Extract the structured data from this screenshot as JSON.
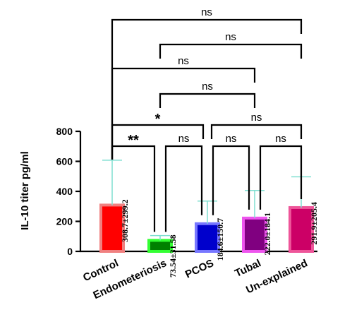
{
  "chart_data": {
    "type": "bar",
    "ylabel": "IL-10 titer pg/ml",
    "ylim": [
      0,
      800
    ],
    "yticks": [
      0,
      200,
      400,
      600,
      800
    ],
    "categories": [
      "Control",
      "Endometeriosis",
      "PCOS",
      "Tubal",
      "Un-explained"
    ],
    "values": [
      308.7,
      73.54,
      184.6,
      222.0,
      291.9
    ],
    "errors": [
      299.2,
      31.58,
      150.7,
      184.1,
      205.4
    ],
    "data_labels": [
      "308.7±299.2",
      "73.54±31.58",
      "184.6±150.7",
      "222.0±184.1",
      "291.9±205.4"
    ],
    "colors": {
      "fill": [
        "#ff0000",
        "#008000",
        "#0000cc",
        "#800080",
        "#cc0066"
      ],
      "edge": [
        "#f08080",
        "#33ff33",
        "#7777ff",
        "#ee55ee",
        "#ee5599"
      ],
      "error": [
        "#7fdfd0",
        "#7fdfd0",
        "#7fdfd0",
        "#7fdfd0",
        "#7fdfd0"
      ]
    },
    "comparisons": [
      {
        "pair": [
          0,
          4
        ],
        "label": "ns"
      },
      {
        "pair": [
          1,
          4
        ],
        "label": "ns"
      },
      {
        "pair": [
          0,
          3
        ],
        "label": "ns"
      },
      {
        "pair": [
          1,
          3
        ],
        "label": "ns"
      },
      {
        "pair": [
          0,
          2
        ],
        "label": "*"
      },
      {
        "pair": [
          2,
          4
        ],
        "label": "ns"
      },
      {
        "pair": [
          0,
          1
        ],
        "label": "**"
      },
      {
        "pair": [
          1,
          2
        ],
        "label": "ns"
      },
      {
        "pair": [
          2,
          3
        ],
        "label": "ns"
      },
      {
        "pair": [
          3,
          4
        ],
        "label": "ns"
      }
    ]
  }
}
